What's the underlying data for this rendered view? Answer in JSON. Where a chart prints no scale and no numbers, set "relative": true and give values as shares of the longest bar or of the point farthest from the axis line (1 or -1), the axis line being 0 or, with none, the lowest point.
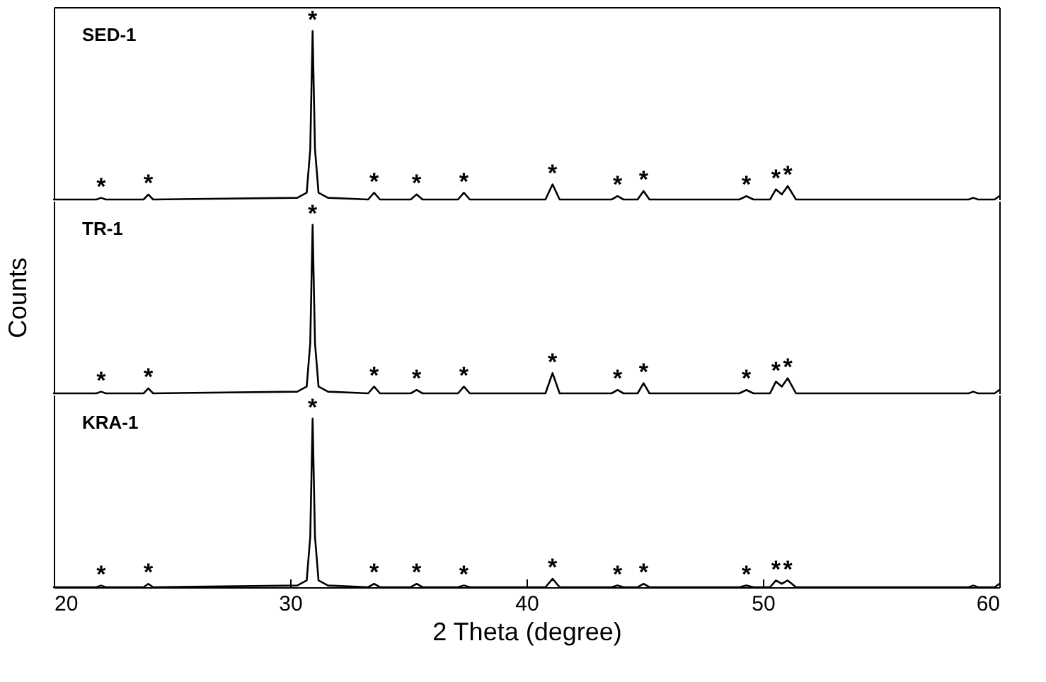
{
  "chart_data": [
    {
      "type": "line",
      "relative": true,
      "tick_labels": false,
      "xlim": [
        20,
        60
      ],
      "x": [
        20,
        21.8,
        22.0,
        22.2,
        23.8,
        24.0,
        24.2,
        30.3,
        30.7,
        30.85,
        30.95,
        31.05,
        31.2,
        31.6,
        33.3,
        33.55,
        33.8,
        35.1,
        35.35,
        35.6,
        37.1,
        37.35,
        37.6,
        40.8,
        41.1,
        41.4,
        43.6,
        43.85,
        44.1,
        44.7,
        44.95,
        45.2,
        49.0,
        49.3,
        49.6,
        50.3,
        50.55,
        50.8,
        51.05,
        51.4,
        58.7,
        58.9,
        59.1,
        59.8,
        60
      ],
      "series": [
        {
          "name": "SED-1",
          "color": "#000000",
          "values": [
            0,
            0,
            0.01,
            0,
            0,
            0.03,
            0,
            0.01,
            0.04,
            0.3,
            1,
            0.3,
            0.04,
            0.01,
            0,
            0.04,
            0,
            0,
            0.03,
            0,
            0,
            0.04,
            0,
            0,
            0.09,
            0,
            0,
            0.02,
            0,
            0,
            0.05,
            0,
            0,
            0.02,
            0,
            0,
            0.06,
            0.03,
            0.08,
            0,
            0,
            0.01,
            0,
            0,
            0.02
          ]
        }
      ],
      "annotations": [
        {
          "text": "*",
          "x": 22.0,
          "y": 0.03
        },
        {
          "text": "*",
          "x": 24.0,
          "y": 0.05
        },
        {
          "text": "*",
          "x": 30.95,
          "y": 1.02
        },
        {
          "text": "*",
          "x": 33.55,
          "y": 0.06
        },
        {
          "text": "*",
          "x": 35.35,
          "y": 0.05
        },
        {
          "text": "*",
          "x": 37.35,
          "y": 0.06
        },
        {
          "text": "*",
          "x": 41.1,
          "y": 0.11
        },
        {
          "text": "*",
          "x": 43.85,
          "y": 0.04
        },
        {
          "text": "*",
          "x": 44.95,
          "y": 0.07
        },
        {
          "text": "*",
          "x": 49.3,
          "y": 0.04
        },
        {
          "text": "*",
          "x": 50.55,
          "y": 0.08
        },
        {
          "text": "*",
          "x": 51.05,
          "y": 0.1
        }
      ]
    },
    {
      "type": "line",
      "relative": true,
      "tick_labels": false,
      "xlim": [
        20,
        60
      ],
      "ylabel": "Counts",
      "x": [
        20,
        21.8,
        22.0,
        22.2,
        23.8,
        24.0,
        24.2,
        30.3,
        30.7,
        30.85,
        30.95,
        31.05,
        31.2,
        31.6,
        33.3,
        33.55,
        33.8,
        35.1,
        35.35,
        35.6,
        37.1,
        37.35,
        37.6,
        40.8,
        41.1,
        41.4,
        43.6,
        43.85,
        44.1,
        44.7,
        44.95,
        45.2,
        49.0,
        49.3,
        49.6,
        50.3,
        50.55,
        50.8,
        51.05,
        51.4,
        58.7,
        58.9,
        59.1,
        59.8,
        60
      ],
      "series": [
        {
          "name": "TR-1",
          "color": "#000000",
          "values": [
            0,
            0,
            0.01,
            0,
            0,
            0.03,
            0,
            0.01,
            0.04,
            0.3,
            1,
            0.3,
            0.04,
            0.01,
            0,
            0.04,
            0,
            0,
            0.02,
            0,
            0,
            0.04,
            0,
            0,
            0.12,
            0,
            0,
            0.02,
            0,
            0,
            0.06,
            0,
            0,
            0.02,
            0,
            0,
            0.07,
            0.04,
            0.09,
            0,
            0,
            0.01,
            0,
            0,
            0.02
          ]
        }
      ],
      "annotations": [
        {
          "text": "*",
          "x": 22.0,
          "y": 0.03
        },
        {
          "text": "*",
          "x": 24.0,
          "y": 0.05
        },
        {
          "text": "*",
          "x": 30.95,
          "y": 1.02
        },
        {
          "text": "*",
          "x": 33.55,
          "y": 0.06
        },
        {
          "text": "*",
          "x": 35.35,
          "y": 0.04
        },
        {
          "text": "*",
          "x": 37.35,
          "y": 0.06
        },
        {
          "text": "*",
          "x": 41.1,
          "y": 0.14
        },
        {
          "text": "*",
          "x": 43.85,
          "y": 0.04
        },
        {
          "text": "*",
          "x": 44.95,
          "y": 0.08
        },
        {
          "text": "*",
          "x": 49.3,
          "y": 0.04
        },
        {
          "text": "*",
          "x": 50.55,
          "y": 0.09
        },
        {
          "text": "*",
          "x": 51.05,
          "y": 0.11
        }
      ]
    },
    {
      "type": "line",
      "relative": true,
      "tick_labels": "x",
      "xlim": [
        20,
        60
      ],
      "xticks": [
        20,
        30,
        40,
        50,
        60
      ],
      "xlabel": "2 Theta (degree)",
      "x": [
        20,
        21.8,
        22.0,
        22.2,
        23.8,
        24.0,
        24.2,
        30.3,
        30.7,
        30.85,
        30.95,
        31.05,
        31.2,
        31.6,
        33.3,
        33.55,
        33.8,
        35.1,
        35.35,
        35.6,
        37.1,
        37.35,
        37.6,
        40.8,
        41.1,
        41.4,
        43.6,
        43.85,
        44.1,
        44.7,
        44.95,
        45.2,
        49.0,
        49.3,
        49.6,
        50.3,
        50.55,
        50.8,
        51.05,
        51.4,
        58.7,
        58.9,
        59.1,
        59.8,
        60
      ],
      "series": [
        {
          "name": "KRA-1",
          "color": "#000000",
          "values": [
            0,
            0,
            0.01,
            0,
            0,
            0.02,
            0,
            0.01,
            0.04,
            0.3,
            1,
            0.3,
            0.04,
            0.01,
            0,
            0.02,
            0,
            0,
            0.02,
            0,
            0,
            0.01,
            0,
            0,
            0.05,
            0,
            0,
            0.01,
            0,
            0,
            0.02,
            0,
            0,
            0.01,
            0,
            0,
            0.04,
            0.02,
            0.04,
            0,
            0,
            0.01,
            0,
            0,
            0.02
          ]
        }
      ],
      "annotations": [
        {
          "text": "*",
          "x": 22.0,
          "y": 0.03
        },
        {
          "text": "*",
          "x": 24.0,
          "y": 0.04
        },
        {
          "text": "*",
          "x": 30.95,
          "y": 1.02
        },
        {
          "text": "*",
          "x": 33.55,
          "y": 0.04
        },
        {
          "text": "*",
          "x": 35.35,
          "y": 0.04
        },
        {
          "text": "*",
          "x": 37.35,
          "y": 0.03
        },
        {
          "text": "*",
          "x": 41.1,
          "y": 0.07
        },
        {
          "text": "*",
          "x": 43.85,
          "y": 0.03
        },
        {
          "text": "*",
          "x": 44.95,
          "y": 0.04
        },
        {
          "text": "*",
          "x": 49.3,
          "y": 0.03
        },
        {
          "text": "*",
          "x": 50.55,
          "y": 0.06
        },
        {
          "text": "*",
          "x": 51.05,
          "y": 0.06
        }
      ]
    }
  ]
}
